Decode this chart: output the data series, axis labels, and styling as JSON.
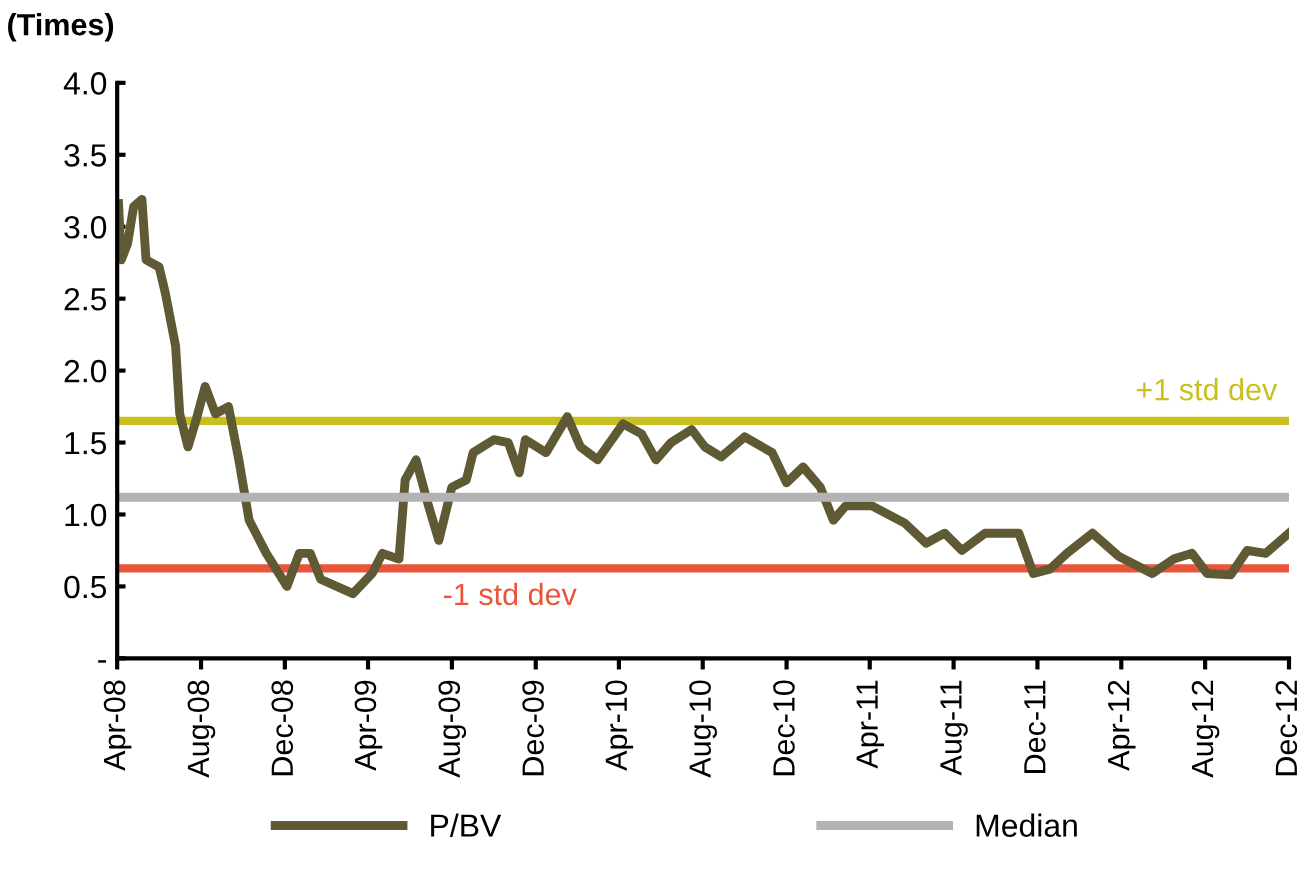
{
  "chart_data": {
    "type": "line",
    "ylabel": "(Times)",
    "xlim": [
      "2008-04-01",
      "2012-12-01"
    ],
    "xticks": [
      {
        "value": "2008-04-01",
        "label": "Apr-08"
      },
      {
        "value": "2008-08-01",
        "label": "Aug-08"
      },
      {
        "value": "2008-12-01",
        "label": "Dec-08"
      },
      {
        "value": "2009-04-01",
        "label": "Apr-09"
      },
      {
        "value": "2009-08-01",
        "label": "Aug-09"
      },
      {
        "value": "2009-12-01",
        "label": "Dec-09"
      },
      {
        "value": "2010-04-01",
        "label": "Apr-10"
      },
      {
        "value": "2010-08-01",
        "label": "Aug-10"
      },
      {
        "value": "2010-12-01",
        "label": "Dec-10"
      },
      {
        "value": "2011-04-01",
        "label": "Apr-11"
      },
      {
        "value": "2011-08-01",
        "label": "Aug-11"
      },
      {
        "value": "2011-12-01",
        "label": "Dec-11"
      },
      {
        "value": "2012-04-01",
        "label": "Apr-12"
      },
      {
        "value": "2012-08-01",
        "label": "Aug-12"
      },
      {
        "value": "2012-12-01",
        "label": "Dec-12"
      }
    ],
    "ylim": [
      0,
      4
    ],
    "yticks": [
      {
        "value": 0,
        "label": "-"
      },
      0.5,
      {
        "value": 1,
        "label": "1.0"
      },
      1.5,
      {
        "value": 2,
        "label": "2.0"
      },
      2.5,
      {
        "value": 3,
        "label": "3.0"
      },
      3.5,
      {
        "value": 4,
        "label": "4.0"
      }
    ],
    "grid": false,
    "legend": "bottom",
    "series": [
      {
        "name": "P/BV",
        "color": "#5f5a34",
        "x": [
          "2008-04-03",
          "2008-04-07",
          "2008-04-16",
          "2008-04-25",
          "2008-05-07",
          "2008-05-13",
          "2008-06-01",
          "2008-06-10",
          "2008-06-25",
          "2008-07-01",
          "2008-07-13",
          "2008-07-25",
          "2008-08-07",
          "2008-08-22",
          "2008-09-10",
          "2008-09-25",
          "2008-10-10",
          "2008-11-04",
          "2008-12-04",
          "2008-12-22",
          "2009-01-07",
          "2009-01-22",
          "2009-03-10",
          "2009-04-07",
          "2009-04-22",
          "2009-05-16",
          "2009-05-25",
          "2009-06-10",
          "2009-06-28",
          "2009-07-13",
          "2009-08-01",
          "2009-08-22",
          "2009-09-01",
          "2009-10-01",
          "2009-10-22",
          "2009-11-07",
          "2009-11-16",
          "2009-12-16",
          "2010-01-16",
          "2010-02-04",
          "2010-03-01",
          "2010-04-07",
          "2010-05-04",
          "2010-05-25",
          "2010-06-16",
          "2010-07-16",
          "2010-08-04",
          "2010-08-28",
          "2010-10-01",
          "2010-11-10",
          "2010-12-01",
          "2010-12-25",
          "2011-01-19",
          "2011-02-07",
          "2011-02-25",
          "2011-04-04",
          "2011-05-22",
          "2011-06-22",
          "2011-07-19",
          "2011-08-13",
          "2011-09-16",
          "2011-11-04",
          "2011-11-25",
          "2011-12-19",
          "2012-01-13",
          "2012-02-19",
          "2012-03-28",
          "2012-05-16",
          "2012-06-16",
          "2012-07-13",
          "2012-08-04",
          "2012-09-07",
          "2012-10-01",
          "2012-10-28",
          "2012-12-01"
        ],
        "values": [
          3.16,
          2.77,
          2.88,
          3.14,
          3.19,
          2.77,
          2.72,
          2.54,
          2.17,
          1.7,
          1.47,
          1.66,
          1.89,
          1.7,
          1.75,
          1.38,
          0.96,
          0.73,
          0.5,
          0.73,
          0.73,
          0.55,
          0.45,
          0.59,
          0.73,
          0.69,
          1.24,
          1.38,
          1.06,
          0.82,
          1.19,
          1.24,
          1.43,
          1.52,
          1.5,
          1.29,
          1.52,
          1.43,
          1.68,
          1.47,
          1.38,
          1.63,
          1.56,
          1.38,
          1.5,
          1.59,
          1.47,
          1.4,
          1.54,
          1.43,
          1.22,
          1.33,
          1.19,
          0.96,
          1.06,
          1.06,
          0.94,
          0.8,
          0.87,
          0.75,
          0.87,
          0.87,
          0.59,
          0.62,
          0.73,
          0.87,
          0.71,
          0.59,
          0.69,
          0.73,
          0.59,
          0.58,
          0.75,
          0.73,
          0.87
        ]
      },
      {
        "name": "Median",
        "color": "#b3b3b3",
        "x": [
          "2008-04-01",
          "2012-12-01"
        ],
        "values": [
          1.12,
          1.12
        ]
      }
    ],
    "ref_lines": [
      {
        "axis": "y",
        "value": 1.65,
        "label": "+1 std dev",
        "color": "#c9c020"
      },
      {
        "axis": "y",
        "value": 0.625,
        "label": "-1 std dev",
        "color": "#e8553a"
      }
    ]
  }
}
